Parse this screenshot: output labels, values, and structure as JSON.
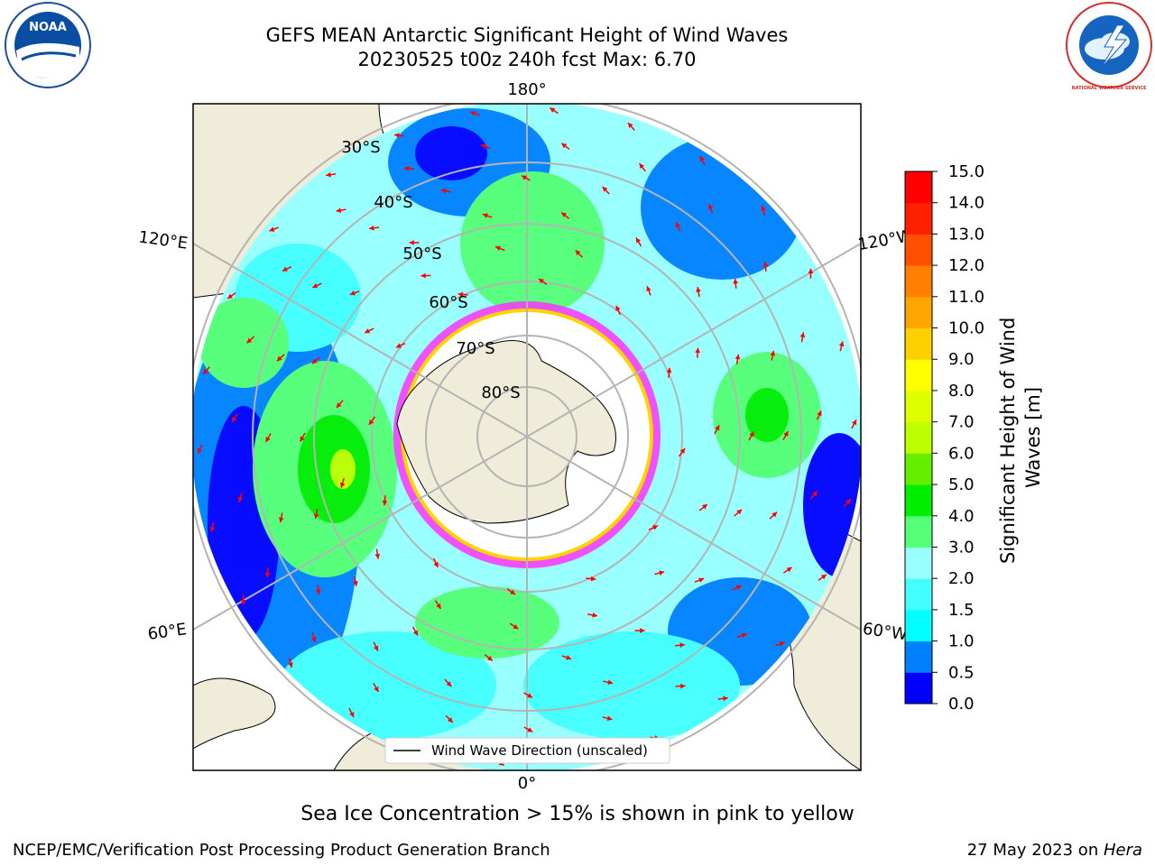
{
  "title": {
    "line1": "GEFS MEAN Antarctic Significant Height of Wind Waves",
    "line2": "20230525 t00z 240h fcst   Max: 6.70"
  },
  "logos": {
    "left": "noaa-logo",
    "left_text": "NOAA",
    "right": "nws-logo",
    "right_text": "NATIONAL WEATHER SERVICE"
  },
  "map": {
    "projection": "south-polar-stereographic",
    "longitude_labels": [
      "180°",
      "120°E",
      "120°W",
      "60°E",
      "60°W",
      "0°"
    ],
    "latitude_labels": [
      "30°S",
      "40°S",
      "50°S",
      "60°S",
      "70°S",
      "80°S"
    ],
    "legend_label": "Wind Wave Direction (unscaled)",
    "arrow_color": "#ff0000",
    "land_color": "#efedd9",
    "sea_ice_colors": [
      "#ff33ff",
      "#ffd400"
    ]
  },
  "colorbar": {
    "label": "Significant Height of Wind Waves [m]",
    "ticks": [
      "0.0",
      "0.5",
      "1.0",
      "1.5",
      "2.0",
      "3.0",
      "4.0",
      "5.0",
      "6.0",
      "7.0",
      "8.0",
      "9.0",
      "10.0",
      "11.0",
      "12.0",
      "13.0",
      "14.0",
      "15.0"
    ],
    "colors": [
      "#0000ff",
      "#0080ff",
      "#00ffff",
      "#44ffff",
      "#99ffff",
      "#55ff77",
      "#00ee00",
      "#66ee00",
      "#bbff00",
      "#ddff00",
      "#ffff00",
      "#ffd000",
      "#ffa500",
      "#ff8000",
      "#ff5000",
      "#ff2000",
      "#ff0000"
    ]
  },
  "sea_ice_note": "Sea Ice Concentration > 15% is shown in pink to yellow",
  "footer": {
    "left": "NCEP/EMC/Verification Post Processing Product Generation Branch",
    "right_date": "27 May 2023 on ",
    "right_machine": "Hera"
  }
}
